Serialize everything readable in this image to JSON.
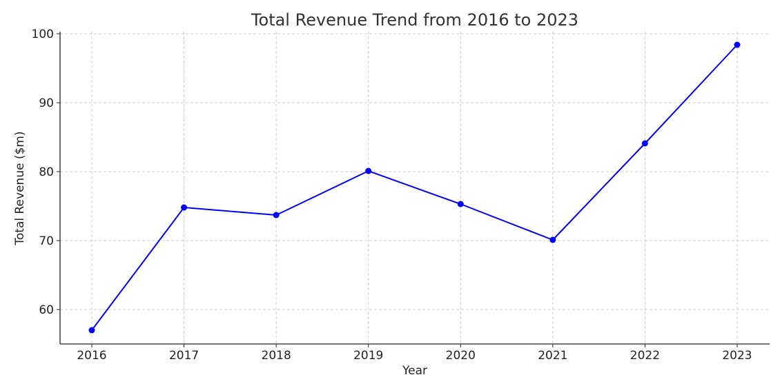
{
  "chart_data": {
    "type": "line",
    "title": "Total Revenue Trend from 2016 to 2023",
    "xlabel": "Year",
    "ylabel": "Total Revenue ($m)",
    "x": [
      "2016",
      "2017",
      "2018",
      "2019",
      "2020",
      "2021",
      "2022",
      "2023"
    ],
    "series": [
      {
        "values": [
          57.0,
          74.8,
          73.7,
          80.1,
          75.3,
          70.1,
          84.1,
          98.4
        ],
        "color": "#0000ff",
        "marker": "circle"
      }
    ],
    "yticks": [
      60,
      70,
      80,
      90,
      100
    ],
    "ylim": [
      55,
      100.3
    ],
    "grid": true,
    "legend": "none"
  }
}
